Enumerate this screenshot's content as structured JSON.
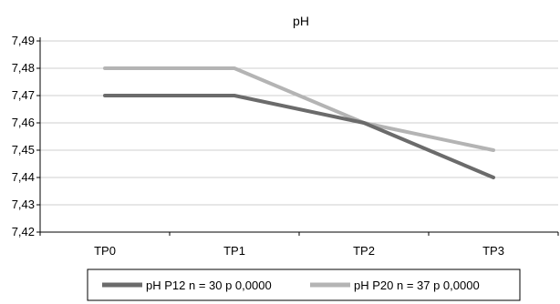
{
  "chart_data": {
    "type": "line",
    "title": "pH",
    "xlabel": "",
    "ylabel": "",
    "categories": [
      "TP0",
      "TP1",
      "TP2",
      "TP3"
    ],
    "y_ticks": [
      "7,42",
      "7,43",
      "7,44",
      "7,45",
      "7,46",
      "7,47",
      "7,48",
      "7,49"
    ],
    "ylim": [
      7.42,
      7.49
    ],
    "grid": true,
    "legend_position": "bottom",
    "series": [
      {
        "name": "pH P12 n = 30 p 0,0000",
        "values": [
          7.47,
          7.47,
          7.46,
          7.44
        ],
        "color": "#6b6b6b"
      },
      {
        "name": "pH P20 n = 37 p 0,0000",
        "values": [
          7.48,
          7.48,
          7.46,
          7.45
        ],
        "color": "#b4b4b4"
      }
    ]
  }
}
